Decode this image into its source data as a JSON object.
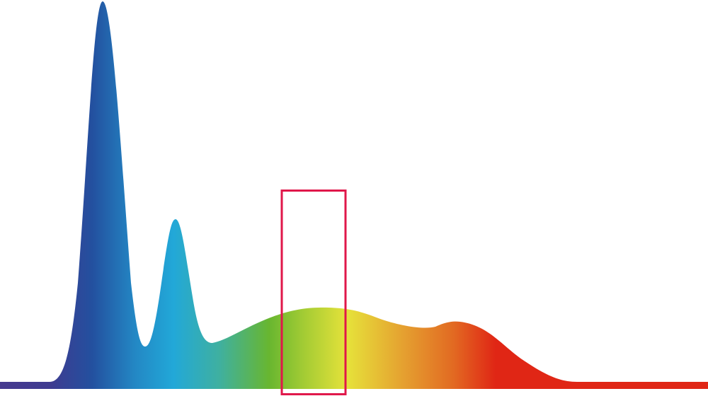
{
  "chart_data": {
    "type": "area",
    "title": "",
    "xlabel": "",
    "ylabel": "",
    "grid": false,
    "legend": "none",
    "fill": "spectral-gradient",
    "gradient_colors": [
      "#463a8f",
      "#23509f",
      "#2387c4",
      "#22a8d8",
      "#68b630",
      "#e6e23a",
      "#e5a030",
      "#e26a22",
      "#e02615"
    ],
    "highlight_box_color": "#e0174a"
  }
}
